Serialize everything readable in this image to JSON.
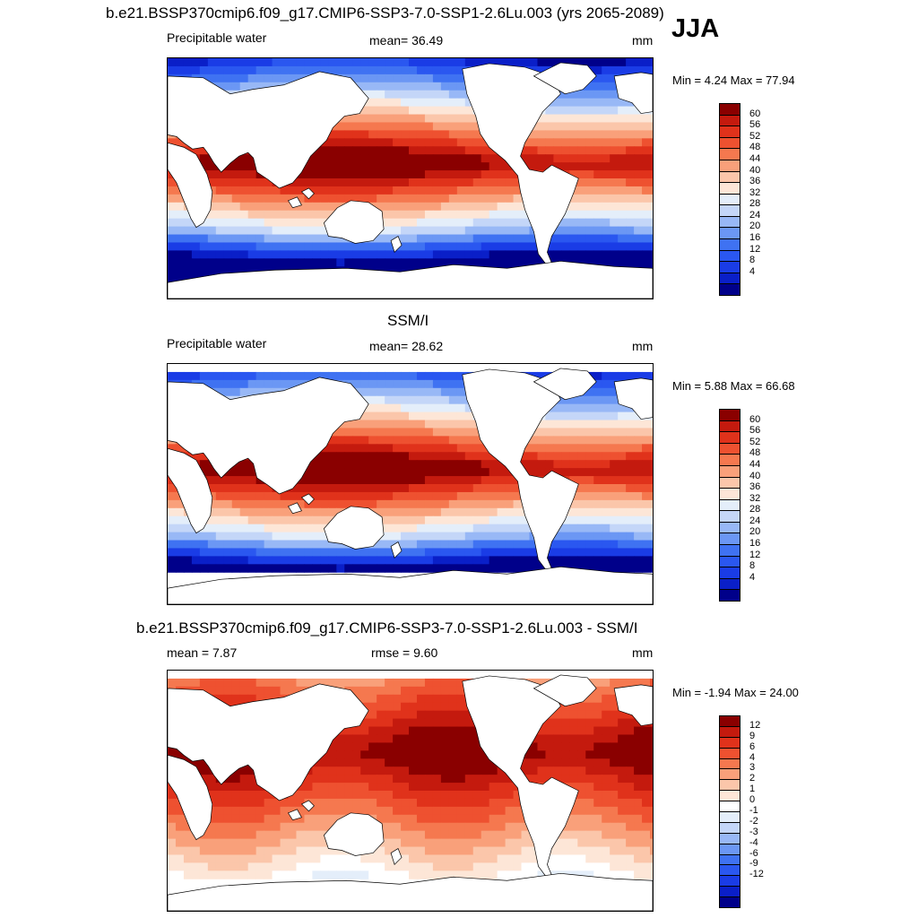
{
  "header": {
    "title": "b.e21.BSSP370cmip6.f09_g17.CMIP6-SSP3-7.0-SSP1-2.6Lu.003 (yrs 2065-2089)",
    "season": "JJA"
  },
  "colors": {
    "pw_scale": [
      "#00008a",
      "#0a1fc8",
      "#1a3ce6",
      "#2a57f0",
      "#3f72f2",
      "#6b97f4",
      "#98b8f6",
      "#c4d6f8",
      "#e4eefa",
      "#fde6d7",
      "#fbc6aa",
      "#f9a07a",
      "#f5784f",
      "#ee5130",
      "#e0321b",
      "#c41a0e",
      "#8a0000"
    ],
    "diff_scale": [
      "#00008a",
      "#0a1fc8",
      "#1a3ce6",
      "#2a57f0",
      "#3f72f2",
      "#6b97f4",
      "#98b8f6",
      "#c4d6f8",
      "#e4eefa",
      "#ffffff",
      "#fde6d7",
      "#fbc6aa",
      "#f9a07a",
      "#f5784f",
      "#ee5130",
      "#e0321b",
      "#c41a0e",
      "#8a0000"
    ]
  },
  "panels": [
    {
      "title": "",
      "left_label": "Precipitable water",
      "center_label": "mean=  36.49",
      "units": "mm",
      "min_max": "Min =   4.24 Max =  77.94",
      "colorbar_ticks": [
        "60",
        "56",
        "52",
        "48",
        "44",
        "40",
        "36",
        "32",
        "28",
        "24",
        "20",
        "16",
        "12",
        "8",
        "4"
      ],
      "scale": "pw",
      "masked": false
    },
    {
      "title": "SSM/I",
      "left_label": "Precipitable water",
      "center_label": "mean=  28.62",
      "units": "mm",
      "min_max": "Min =   5.88 Max =  66.68",
      "colorbar_ticks": [
        "60",
        "56",
        "52",
        "48",
        "44",
        "40",
        "36",
        "32",
        "28",
        "24",
        "20",
        "16",
        "12",
        "8",
        "4"
      ],
      "scale": "pw",
      "masked": true
    },
    {
      "title": "b.e21.BSSP370cmip6.f09_g17.CMIP6-SSP3-7.0-SSP1-2.6Lu.003 - SSM/I",
      "left_label": "mean =   7.87",
      "center_label": "rmse =   9.60",
      "units": "mm",
      "min_max": "Min =  -1.94 Max =  24.00",
      "colorbar_ticks": [
        "12",
        "9",
        "6",
        "4",
        "3",
        "2",
        "1",
        "0",
        "-1",
        "-2",
        "-3",
        "-4",
        "-6",
        "-9",
        "-12"
      ],
      "scale": "diff",
      "masked": true
    }
  ]
}
